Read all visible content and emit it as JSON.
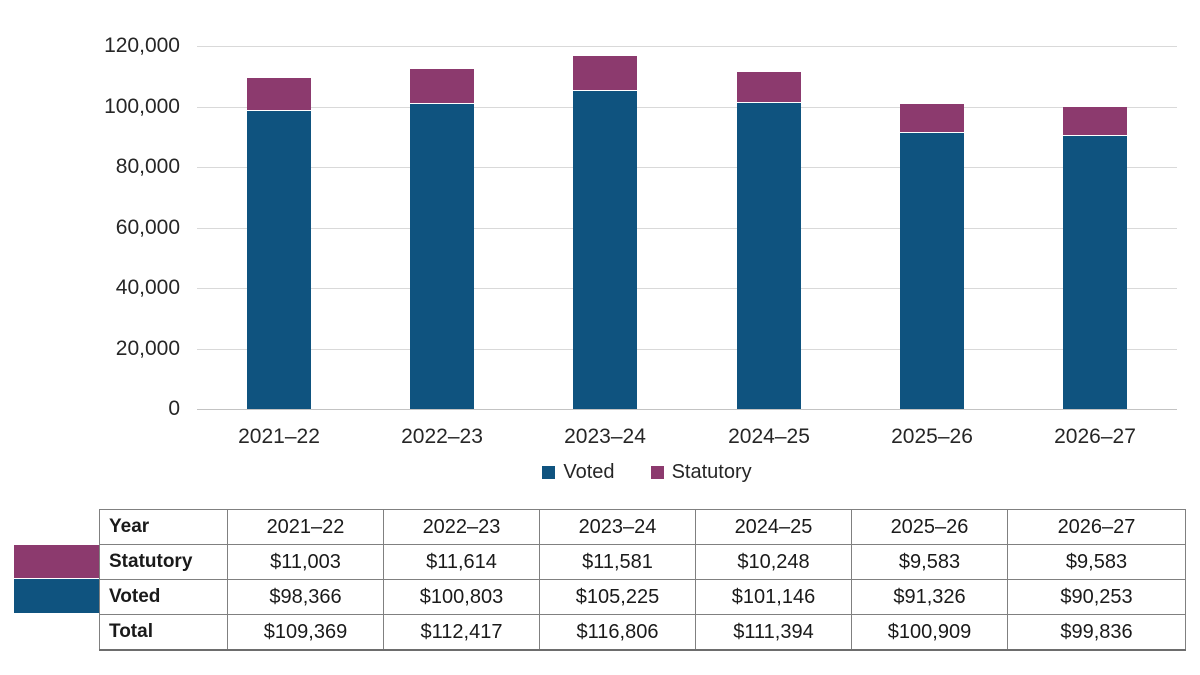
{
  "chart_data": {
    "type": "bar",
    "stacked": true,
    "title": "",
    "xlabel": "",
    "ylabel": "",
    "categories": [
      "2021–22",
      "2022–23",
      "2023–24",
      "2024–25",
      "2025–26",
      "2026–27"
    ],
    "series": [
      {
        "name": "Voted",
        "color": "#0F537F",
        "values": [
          98366,
          100803,
          105225,
          101146,
          91326,
          90253
        ]
      },
      {
        "name": "Statutory",
        "color": "#8C3A6E",
        "values": [
          11003,
          11614,
          11581,
          10248,
          9583,
          9583
        ]
      }
    ],
    "totals": [
      109369,
      112417,
      116806,
      111394,
      100909,
      99836
    ],
    "ylim": [
      0,
      120000
    ],
    "ytick_step": 20000,
    "ytick_labels": [
      "0",
      "20,000",
      "40,000",
      "60,000",
      "80,000",
      "100,000",
      "120,000"
    ],
    "grid": true,
    "gridline_color": "#D9D9D9",
    "legend_position": "bottom",
    "legend": [
      {
        "label": "Voted",
        "color": "#0F537F"
      },
      {
        "label": "Statutory",
        "color": "#8C3A6E"
      }
    ],
    "text_color": "#262626"
  },
  "table": {
    "header": {
      "label": "Year",
      "values": [
        "2021–22",
        "2022–23",
        "2023–24",
        "2024–25",
        "2025–26",
        "2026–27"
      ]
    },
    "rows": [
      {
        "label": "Statutory",
        "swatch": "#8C3A6E",
        "values": [
          "$11,003",
          "$11,614",
          "$11,581",
          "$10,248",
          "$9,583",
          "$9,583"
        ]
      },
      {
        "label": "Voted",
        "swatch": "#0F537F",
        "values": [
          "$98,366",
          "$100,803",
          "$105,225",
          "$101,146",
          "$91,326",
          "$90,253"
        ]
      },
      {
        "label": "Total",
        "swatch": null,
        "values": [
          "$109,369",
          "$112,417",
          "$116,806",
          "$111,394",
          "$100,909",
          "$99,836"
        ]
      }
    ]
  }
}
